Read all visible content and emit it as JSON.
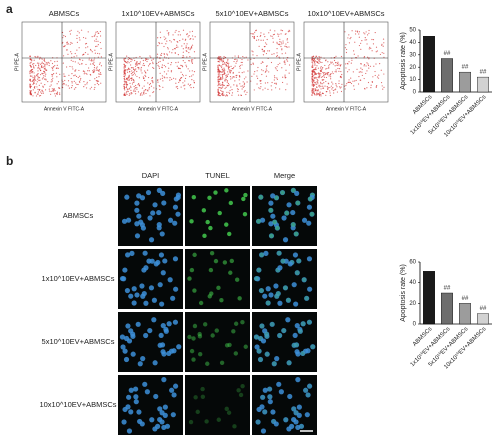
{
  "panel_a": {
    "label": "a",
    "plots": [
      {
        "title": "ABMSCs"
      },
      {
        "title": "1x10^10EV+ABMSCs"
      },
      {
        "title": "5x10^10EV+ABMSCs"
      },
      {
        "title": "10x10^10EV+ABMSCs"
      }
    ],
    "x_axis_label": "Annexin V FITC-A",
    "y_axis_label": "PI PE-A"
  },
  "panel_b": {
    "label": "b",
    "columns": [
      "DAPI",
      "TUNEL",
      "Merge"
    ],
    "rows": [
      "ABMSCs",
      "1x10^10EV+ABMSCs",
      "5x10^10EV+ABMSCs",
      "10x10^10EV+ABMSCs"
    ]
  },
  "chart_data": [
    {
      "type": "bar",
      "ylabel": "Apoptosis rate (%)",
      "categories": [
        "ABMSCs",
        "1x10¹⁰EV+ABMSCs",
        "5x10¹⁰EV+ABMSCs",
        "10x10¹⁰EV+ABMSCs"
      ],
      "values": [
        45,
        27,
        16,
        12
      ],
      "colors": [
        "#1a1a1a",
        "#6e6e6e",
        "#9c9c9c",
        "#d2d2d2"
      ],
      "ylim": [
        0,
        50
      ],
      "yticks": [
        0,
        10,
        20,
        30,
        40,
        50
      ],
      "annotations": [
        {
          "x": "1x10¹⁰EV+ABMSCs",
          "text": "##"
        },
        {
          "x": "5x10¹⁰EV+ABMSCs",
          "text": "##"
        },
        {
          "x": "10x10¹⁰EV+ABMSCs",
          "text": "##"
        }
      ]
    },
    {
      "type": "bar",
      "ylabel": "Apoptosis rate (%)",
      "categories": [
        "ABMSCs",
        "1x10¹⁰EV+ABMSCs",
        "5x10¹⁰EV+ABMSCs",
        "10x10¹⁰EV+ABMSCs"
      ],
      "values": [
        51,
        30,
        20,
        10
      ],
      "colors": [
        "#1a1a1a",
        "#6e6e6e",
        "#9c9c9c",
        "#d2d2d2"
      ],
      "ylim": [
        0,
        60
      ],
      "yticks": [
        0,
        20,
        40,
        60
      ],
      "annotations": [
        {
          "x": "1x10¹⁰EV+ABMSCs",
          "text": "##"
        },
        {
          "x": "5x10¹⁰EV+ABMSCs",
          "text": "##"
        },
        {
          "x": "10x10¹⁰EV+ABMSCs",
          "text": "##"
        }
      ]
    }
  ]
}
